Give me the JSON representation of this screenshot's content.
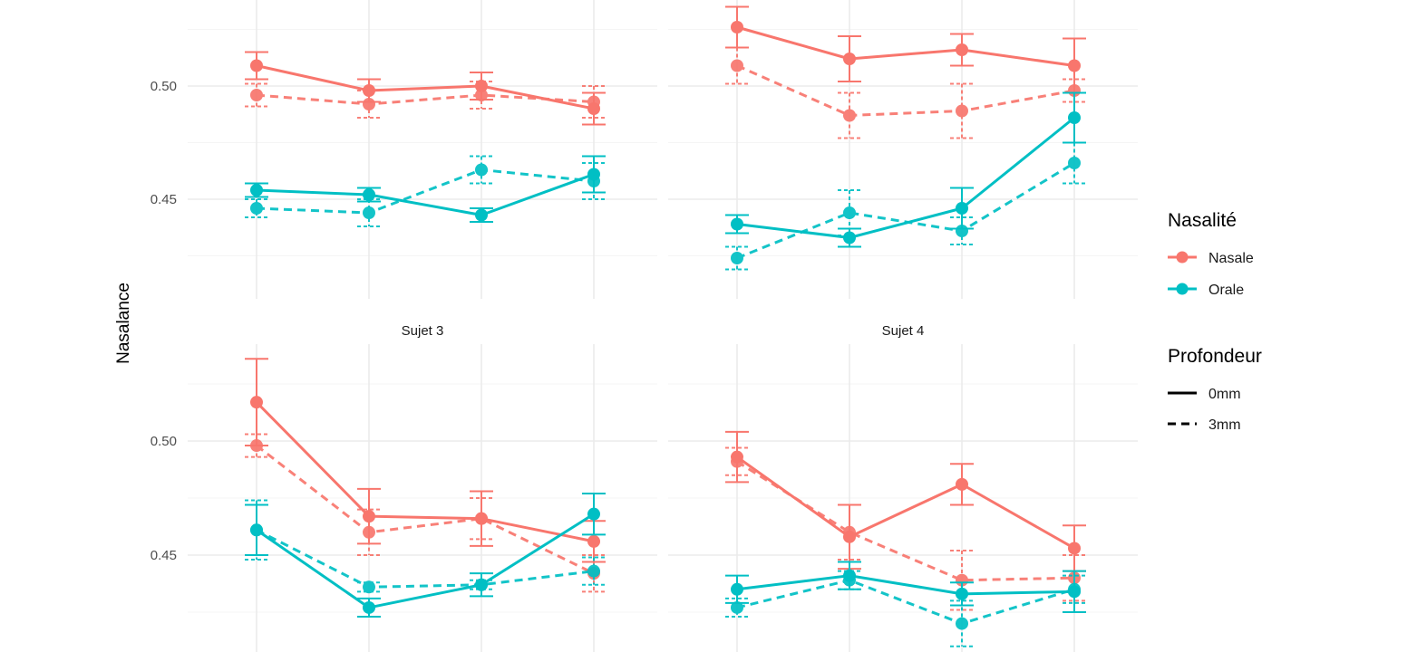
{
  "colors": {
    "Nasale": "#F8766D",
    "Orale": "#00BFC4"
  },
  "chart_data": {
    "type": "line",
    "ylabel": "Nasalance",
    "xlabel": "",
    "x": [
      1,
      2,
      3,
      4
    ],
    "y_ticks": [
      0.45,
      0.5
    ],
    "y_tick_labels": [
      "0.45",
      "0.50"
    ],
    "legend_placement": "right",
    "grid": true,
    "legend": {
      "color": {
        "title": "Nasalité",
        "labels": [
          "Nasale",
          "Orale"
        ]
      },
      "linetype": {
        "title": "Profondeur",
        "labels": [
          "0mm",
          "3mm"
        ]
      }
    },
    "panels": [
      {
        "strip": "",
        "ylim": [
          0.405,
          0.537
        ],
        "series": [
          {
            "nasalite": "Nasale",
            "profondeur": "0mm",
            "values": [
              0.509,
              0.498,
              0.5,
              0.49
            ],
            "err": [
              0.006,
              0.005,
              0.006,
              0.007
            ]
          },
          {
            "nasalite": "Nasale",
            "profondeur": "3mm",
            "values": [
              0.496,
              0.492,
              0.496,
              0.493
            ],
            "err": [
              0.005,
              0.006,
              0.006,
              0.007
            ]
          },
          {
            "nasalite": "Orale",
            "profondeur": "0mm",
            "values": [
              0.454,
              0.452,
              0.443,
              0.461
            ],
            "err": [
              0.003,
              0.003,
              0.003,
              0.008
            ]
          },
          {
            "nasalite": "Orale",
            "profondeur": "3mm",
            "values": [
              0.446,
              0.444,
              0.463,
              0.458
            ],
            "err": [
              0.004,
              0.006,
              0.006,
              0.008
            ]
          }
        ]
      },
      {
        "strip": "",
        "ylim": [
          0.405,
          0.537
        ],
        "series": [
          {
            "nasalite": "Nasale",
            "profondeur": "0mm",
            "values": [
              0.526,
              0.512,
              0.516,
              0.509
            ],
            "err": [
              0.009,
              0.01,
              0.007,
              0.012
            ]
          },
          {
            "nasalite": "Nasale",
            "profondeur": "3mm",
            "values": [
              0.509,
              0.487,
              0.489,
              0.498
            ],
            "err": [
              0.008,
              0.01,
              0.012,
              0.005
            ]
          },
          {
            "nasalite": "Orale",
            "profondeur": "0mm",
            "values": [
              0.439,
              0.433,
              0.446,
              0.486
            ],
            "err": [
              0.004,
              0.004,
              0.009,
              0.011
            ]
          },
          {
            "nasalite": "Orale",
            "profondeur": "3mm",
            "values": [
              0.424,
              0.444,
              0.436,
              0.466
            ],
            "err": [
              0.005,
              0.01,
              0.006,
              0.009
            ]
          }
        ]
      },
      {
        "strip": "Sujet 3",
        "ylim": [
          0.405,
          0.537
        ],
        "series": [
          {
            "nasalite": "Nasale",
            "profondeur": "0mm",
            "values": [
              0.517,
              0.467,
              0.466,
              0.456
            ],
            "err": [
              0.019,
              0.012,
              0.012,
              0.009
            ]
          },
          {
            "nasalite": "Nasale",
            "profondeur": "3mm",
            "values": [
              0.498,
              0.46,
              0.466,
              0.442
            ],
            "err": [
              0.005,
              0.01,
              0.009,
              0.008
            ]
          },
          {
            "nasalite": "Orale",
            "profondeur": "0mm",
            "values": [
              0.461,
              0.427,
              0.437,
              0.468
            ],
            "err": [
              0.011,
              0.004,
              0.005,
              0.009
            ]
          },
          {
            "nasalite": "Orale",
            "profondeur": "3mm",
            "values": [
              0.461,
              0.436,
              0.437,
              0.443
            ],
            "err": [
              0.013,
              0.002,
              0.002,
              0.006
            ]
          }
        ]
      },
      {
        "strip": "Sujet 4",
        "ylim": [
          0.405,
          0.537
        ],
        "series": [
          {
            "nasalite": "Nasale",
            "profondeur": "0mm",
            "values": [
              0.493,
              0.458,
              0.481,
              0.453
            ],
            "err": [
              0.011,
              0.014,
              0.009,
              0.01
            ]
          },
          {
            "nasalite": "Nasale",
            "profondeur": "3mm",
            "values": [
              0.491,
              0.46,
              0.439,
              0.44
            ],
            "err": [
              0.006,
              0.012,
              0.013,
              0.01
            ]
          },
          {
            "nasalite": "Orale",
            "profondeur": "0mm",
            "values": [
              0.435,
              0.441,
              0.433,
              0.434
            ],
            "err": [
              0.006,
              0.006,
              0.005,
              0.009
            ]
          },
          {
            "nasalite": "Orale",
            "profondeur": "3mm",
            "values": [
              0.427,
              0.439,
              0.42,
              0.435
            ],
            "err": [
              0.004,
              0.004,
              0.01,
              0.006
            ]
          }
        ]
      }
    ]
  }
}
